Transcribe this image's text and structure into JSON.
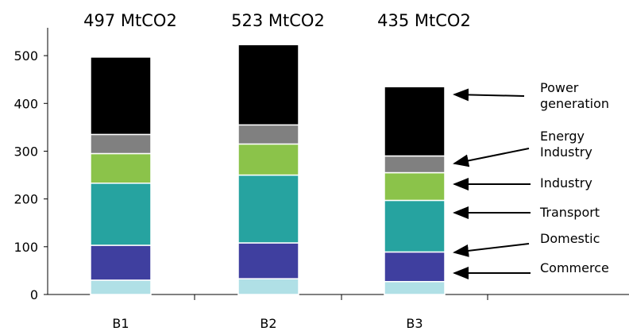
{
  "chart_data": {
    "type": "bar",
    "stacked": true,
    "categories": [
      "B1",
      "B2",
      "B3"
    ],
    "totals": [
      "497 MtCO2",
      "523 MtCO2",
      "435 MtCO2"
    ],
    "ylim": [
      0,
      550
    ],
    "yticks": [
      0,
      100,
      200,
      300,
      400,
      500
    ],
    "grid": false,
    "series": [
      {
        "name": "Commerce",
        "values": [
          30,
          33,
          27
        ],
        "color": "#b0e0e6"
      },
      {
        "name": "Domestic",
        "values": [
          73,
          75,
          62
        ],
        "color": "#3f3f9f"
      },
      {
        "name": "Transport",
        "values": [
          130,
          142,
          108
        ],
        "color": "#26a3a0"
      },
      {
        "name": "Industry",
        "values": [
          62,
          65,
          58
        ],
        "color": "#8bc34a"
      },
      {
        "name": "Energy Industry",
        "values": [
          40,
          40,
          35
        ],
        "color": "#808080"
      },
      {
        "name": "Power generation",
        "values": [
          162,
          168,
          145
        ],
        "color": "#000000"
      }
    ],
    "legend_order": [
      "Power generation",
      "Energy Industry",
      "Industry",
      "Transport",
      "Domestic",
      "Commerce"
    ],
    "legend_lines": {
      "Power generation": [
        "Power",
        "generation"
      ],
      "Energy Industry": [
        "Energy",
        "Industry"
      ],
      "Industry": [
        "Industry"
      ],
      "Transport": [
        "Transport"
      ],
      "Domestic": [
        "Domestic"
      ],
      "Commerce": [
        "Commerce"
      ]
    }
  }
}
